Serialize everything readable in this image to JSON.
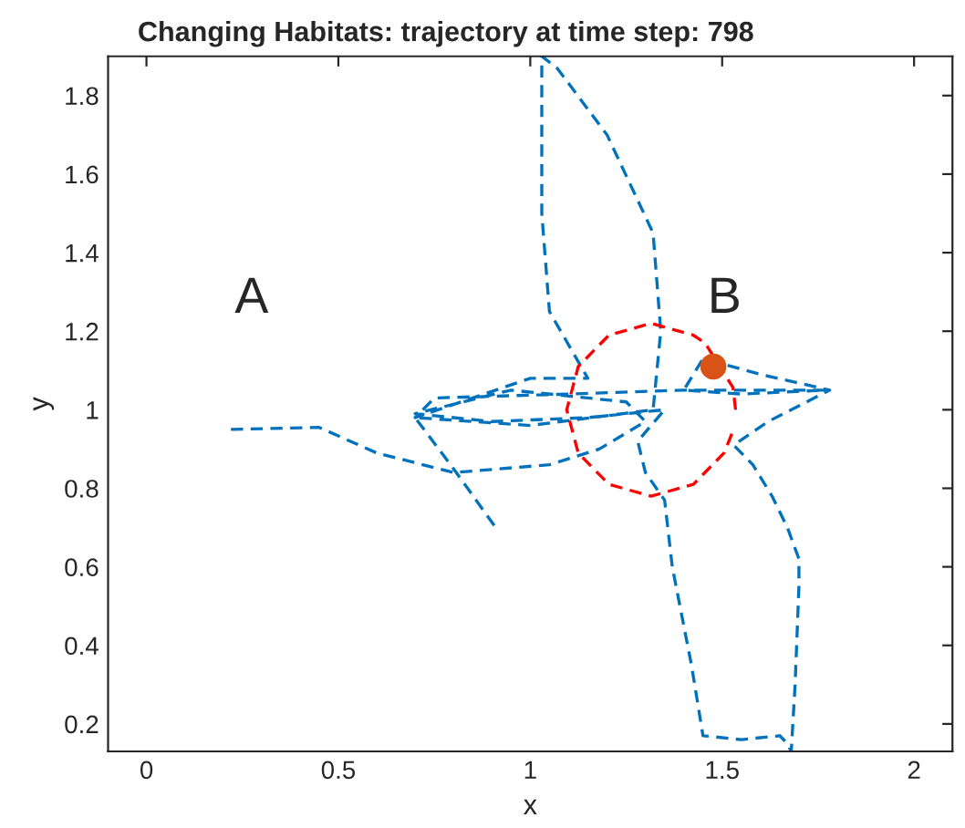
{
  "chart_data": {
    "type": "line",
    "title": "Changing Habitats: trajectory at time step: 798",
    "xlabel": "x",
    "ylabel": "y",
    "xlim": [
      -0.1,
      2.1
    ],
    "ylim": [
      0.13,
      1.9
    ],
    "xticks": [
      0,
      0.5,
      1,
      1.5,
      2
    ],
    "yticks": [
      0.2,
      0.4,
      0.6,
      0.8,
      1,
      1.2,
      1.4,
      1.6,
      1.8
    ],
    "grid": false,
    "series": [
      {
        "color": "#0072bd",
        "line_style": "dashed",
        "marker": "none",
        "x": [
          0.22,
          0.45,
          0.6,
          0.8,
          1.05,
          1.18,
          1.3,
          1.25,
          0.95,
          0.7,
          0.9,
          1.15,
          1.35,
          1.28,
          1.3,
          1.35,
          1.37,
          1.42,
          1.45,
          1.55,
          1.65,
          1.67,
          1.68,
          1.69,
          1.7,
          1.7,
          1.67,
          1.63,
          1.58,
          1.53,
          1.62,
          1.78,
          1.6,
          1.45,
          1.4,
          1.55,
          1.77,
          1.4,
          1.1,
          0.75,
          0.7,
          1.0,
          1.15,
          1.05,
          1.03,
          1.03,
          1.07,
          1.2,
          1.32,
          1.34,
          1.32,
          1.0,
          0.7,
          0.8,
          0.91
        ],
        "values": [
          0.95,
          0.955,
          0.89,
          0.84,
          0.86,
          0.9,
          0.97,
          1.02,
          1.05,
          0.99,
          0.97,
          0.98,
          1.0,
          0.92,
          0.84,
          0.77,
          0.6,
          0.35,
          0.17,
          0.16,
          0.17,
          0.15,
          0.13,
          0.3,
          0.55,
          0.62,
          0.7,
          0.78,
          0.86,
          0.91,
          0.97,
          1.05,
          1.09,
          1.13,
          1.05,
          1.04,
          1.05,
          1.05,
          1.04,
          1.03,
          0.98,
          1.08,
          1.08,
          1.25,
          1.5,
          1.9,
          1.87,
          1.7,
          1.45,
          1.2,
          1.0,
          0.96,
          0.98,
          0.85,
          0.7
        ]
      },
      {
        "type": "line",
        "color": "#ff0000",
        "line_style": "dashed",
        "marker": "none",
        "x": [
          1.535,
          1.528,
          1.456,
          1.425,
          1.315,
          1.205,
          1.125,
          1.095,
          1.125,
          1.205,
          1.315,
          1.425,
          1.505,
          1.527
        ],
        "values": [
          1.0,
          1.057,
          1.169,
          1.19,
          1.22,
          1.19,
          1.11,
          1.0,
          0.89,
          0.81,
          0.78,
          0.81,
          0.89,
          0.943
        ]
      },
      {
        "type": "scatter",
        "color": "#d95319",
        "marker": "circle",
        "x": [
          1.477
        ],
        "values": [
          1.11
        ]
      }
    ],
    "annotations": [
      "A",
      "B"
    ]
  }
}
